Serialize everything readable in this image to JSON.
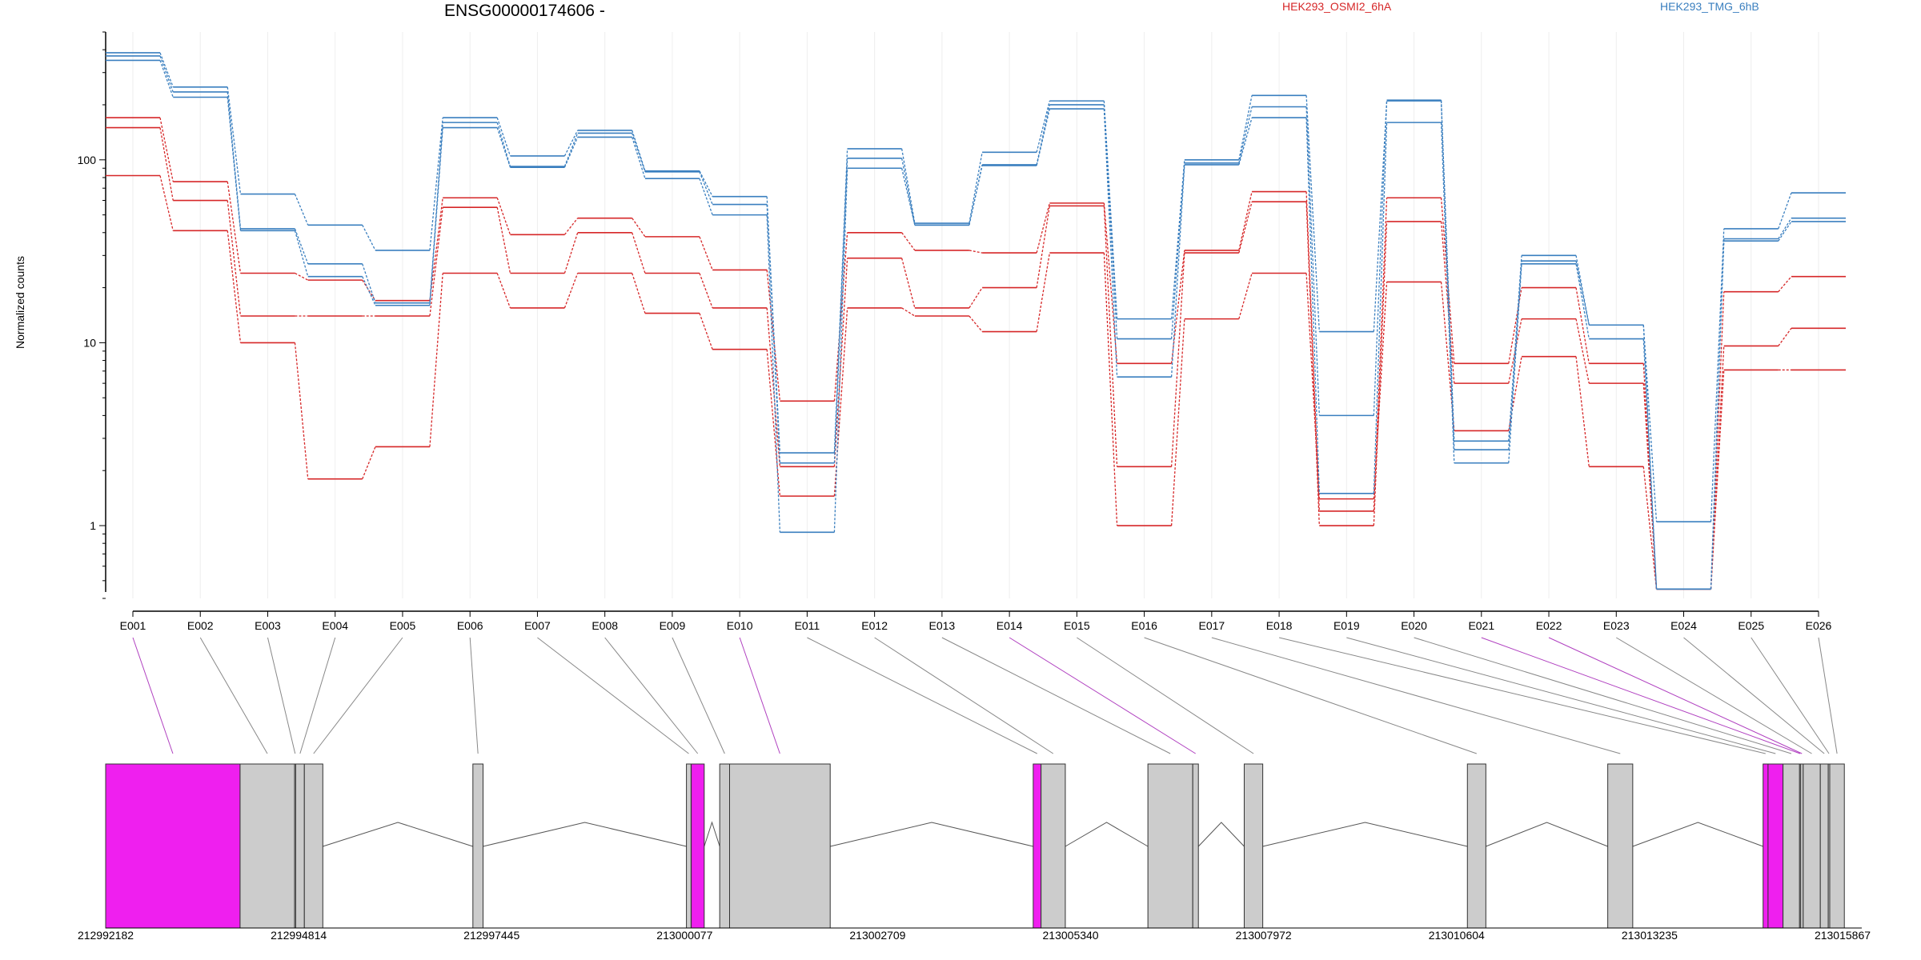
{
  "title": "ENSG00000174606 -",
  "ylabel": "Normalized counts",
  "legend": [
    {
      "name": "HEK293_OSMI2_6hA",
      "color": "#d62728"
    },
    {
      "name": "HEK293_TMG_6hB",
      "color": "#3a7fbf"
    }
  ],
  "colors": {
    "red": "#d62728",
    "blue": "#3a7fbf",
    "exon_gray": "#cccccc",
    "exon_highlight": "#ef1fef",
    "link_gray": "#888888",
    "link_magenta": "#b040c0"
  },
  "chart_data": {
    "type": "line",
    "yscale": "log",
    "ylim": [
      0.4,
      500
    ],
    "yticks": [
      "1",
      "10",
      "100"
    ],
    "grid": "vertical",
    "x": [
      "E001",
      "E002",
      "E003",
      "E004",
      "E005",
      "E006",
      "E007",
      "E008",
      "E009",
      "E010",
      "E011",
      "E012",
      "E013",
      "E014",
      "E015",
      "E016",
      "E017",
      "E018",
      "E019",
      "E020",
      "E021",
      "E022",
      "E023",
      "E024",
      "E025",
      "E026"
    ],
    "highlighted_bins": [
      "E001",
      "E010",
      "E014",
      "E021",
      "E022"
    ],
    "series": [
      {
        "group": "HEK293_OSMI2_6hA",
        "values": [
          170,
          76,
          24,
          22,
          17,
          62,
          39,
          48,
          38,
          25,
          4.8,
          40,
          32,
          31,
          58,
          7.7,
          32,
          67,
          1.2,
          62,
          7.7,
          20,
          7.7,
          0.45,
          19,
          23
        ]
      },
      {
        "group": "HEK293_OSMI2_6hA",
        "values": [
          150,
          60,
          14,
          14,
          14,
          55,
          24,
          40,
          24,
          15.5,
          2.1,
          29,
          15.5,
          20,
          56,
          2.1,
          31,
          59,
          1.0,
          46,
          6.0,
          13.5,
          6.0,
          0.45,
          9.6,
          12
        ]
      },
      {
        "group": "HEK293_OSMI2_6hA",
        "values": [
          82,
          41,
          10,
          1.8,
          2.7,
          24,
          15.5,
          24,
          14.5,
          9.2,
          1.45,
          15.5,
          14,
          11.5,
          31,
          1.0,
          13.5,
          24,
          1.4,
          21.5,
          3.3,
          8.4,
          2.1,
          0.45,
          7.1,
          7.1
        ]
      },
      {
        "group": "HEK293_TMG_6hB",
        "values": [
          385,
          250,
          65,
          44,
          32,
          170,
          105,
          145,
          87,
          63,
          2.5,
          115,
          45,
          110,
          210,
          13.5,
          100,
          225,
          11.5,
          210,
          2.9,
          30,
          12.5,
          1.05,
          42,
          66
        ]
      },
      {
        "group": "HEK293_TMG_6hB",
        "values": [
          370,
          235,
          42,
          27,
          16.5,
          160,
          92,
          140,
          86,
          57,
          2.2,
          102,
          44,
          94,
          200,
          10.5,
          96,
          195,
          4.0,
          212,
          2.6,
          28,
          12.5,
          0.45,
          37,
          48
        ]
      },
      {
        "group": "HEK293_TMG_6hB",
        "values": [
          350,
          220,
          41,
          23,
          16,
          150,
          91,
          133,
          79,
          50,
          0.92,
          90,
          44,
          93,
          190,
          6.5,
          94,
          170,
          1.5,
          160,
          2.2,
          27,
          10.5,
          0.45,
          36,
          46
        ]
      }
    ],
    "genome_ticks": [
      "212992182",
      "212994814",
      "212997445",
      "213000077",
      "213002709",
      "213005340",
      "213007972",
      "213010604",
      "213013235",
      "213015867"
    ],
    "gene_range": [
      212992182,
      213015867
    ]
  },
  "gene_model": {
    "exons": [
      {
        "start": 212992182,
        "end": 212993995,
        "highlight": true
      },
      {
        "start": 212993995,
        "end": 212994730,
        "highlight": false
      },
      {
        "start": 212994730,
        "end": 212994745,
        "highlight": false
      },
      {
        "start": 212994745,
        "end": 212994862,
        "highlight": false
      },
      {
        "start": 212994862,
        "end": 212995111,
        "highlight": false
      },
      {
        "start": 212997135,
        "end": 212997272,
        "highlight": false
      },
      {
        "start": 213000015,
        "end": 213000077,
        "highlight": false
      },
      {
        "start": 213000080,
        "end": 213000255,
        "highlight": true
      },
      {
        "start": 213000464,
        "end": 213000597,
        "highlight": false
      },
      {
        "start": 213000597,
        "end": 213001954,
        "highlight": false
      },
      {
        "start": 213004692,
        "end": 213004798,
        "highlight": true
      },
      {
        "start": 213004798,
        "end": 213005125,
        "highlight": false
      },
      {
        "start": 213006239,
        "end": 213006844,
        "highlight": false
      },
      {
        "start": 213006844,
        "end": 213006920,
        "highlight": false
      },
      {
        "start": 213007538,
        "end": 213007788,
        "highlight": false
      },
      {
        "start": 213010548,
        "end": 213010797,
        "highlight": false
      },
      {
        "start": 213012441,
        "end": 213012778,
        "highlight": false
      },
      {
        "start": 213014536,
        "end": 213014603,
        "highlight": true
      },
      {
        "start": 213014603,
        "end": 213014805,
        "highlight": true
      },
      {
        "start": 213014805,
        "end": 213015028,
        "highlight": false
      },
      {
        "start": 213015028,
        "end": 213015043,
        "highlight": false
      },
      {
        "start": 213015043,
        "end": 213015077,
        "highlight": false
      },
      {
        "start": 213015077,
        "end": 213015308,
        "highlight": false
      },
      {
        "start": 213015308,
        "end": 213015415,
        "highlight": false
      },
      {
        "start": 213015415,
        "end": 213015435,
        "highlight": false
      },
      {
        "start": 213015435,
        "end": 213015632,
        "highlight": false
      }
    ]
  }
}
